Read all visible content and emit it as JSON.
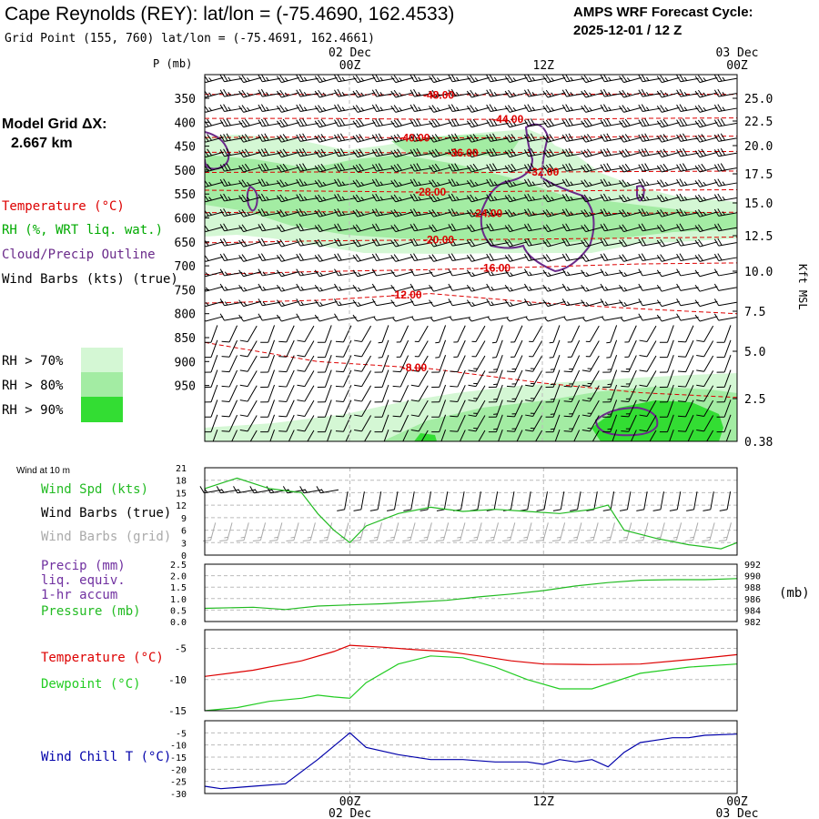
{
  "header": {
    "station_title": "Cape Reynolds (REY):  lat/lon = (-75.4690, 162.4533)",
    "grid_point": "Grid Point (155, 760) lat/lon = (-75.4691, 162.4661)",
    "cycle_line1": "AMPS WRF Forecast Cycle:",
    "cycle_line2": "2025-12-01 / 12  Z"
  },
  "left_labels": {
    "model_grid_line1": "Model Grid ΔX:",
    "model_grid_line2": "2.667 km",
    "temperature": "Temperature (°C)",
    "rh": "RH (%, WRT liq. wat.)",
    "cloud": "Cloud/Precip Outline",
    "wind_barbs": "Wind Barbs (kts) (true)",
    "rh70": "RH > 70%",
    "rh80": "RH > 80%",
    "rh90": "RH > 90%",
    "wind_10m": "Wind at 10 m",
    "wind_spd": "Wind Spd (kts)",
    "wind_barbs_true": "Wind Barbs (true)",
    "wind_barbs_grid": "Wind Barbs (grid)",
    "precip1": "Precip (mm)",
    "precip2": "liq. equiv.",
    "precip3": "1-hr accum",
    "pressure": "Pressure (mb)",
    "pressure_units": "(mb)",
    "temperature2": "Temperature (°C)",
    "dewpoint": "Dewpoint (°C)",
    "windchill": "Wind Chill T (°C)"
  },
  "colors": {
    "temperature": "#dd0000",
    "rh_label": "#00aa00",
    "cloud": "#6a2a8a",
    "wind_speed": "#22bb22",
    "wind_grid": "#aaaaaa",
    "precip_label": "#7030a0",
    "dewpoint": "#22cc22",
    "windchill": "#0000aa",
    "rh70": "#d4f7d4",
    "rh80": "#a3eca3",
    "rh90": "#33dd33"
  },
  "chart_data": [
    {
      "type": "time-height cross-section",
      "ylabel_left": "P (mb)",
      "ylabel_right": "Kft MSL",
      "pressure_ticks": [
        "350",
        "400",
        "450",
        "500",
        "550",
        "600",
        "650",
        "700",
        "750",
        "800",
        "850",
        "900",
        "950"
      ],
      "height_ticks": [
        "25.0",
        "22.5",
        "20.0",
        "17.5",
        "15.0",
        "12.5",
        "10.0",
        "7.5",
        "5.0",
        "2.5",
        "0.38"
      ],
      "time_top": [
        {
          "date": "02 Dec",
          "hour": "00Z"
        },
        {
          "date": "",
          "hour": "12Z"
        },
        {
          "date": "03 Dec",
          "hour": "00Z"
        }
      ],
      "isotherm_labels": [
        "-48.00",
        "-44.00",
        "-40.00",
        "-36.00",
        "-32.00",
        "-28.00",
        "-24.00",
        "-20.00",
        "-16.00",
        "-12.00",
        "-8.00"
      ],
      "isotherms": [
        {
          "label": "-48.00",
          "p": [
            342,
            342,
            343,
            342,
            341,
            342
          ]
        },
        {
          "label": "-44.00",
          "p": [
            392,
            392,
            394,
            394,
            392,
            391
          ]
        },
        {
          "label": "-40.00",
          "p": [
            432,
            431,
            433,
            432,
            430,
            429
          ]
        },
        {
          "label": "-36.00",
          "p": [
            463,
            463,
            464,
            463,
            462,
            461
          ]
        },
        {
          "label": "-32.00",
          "p": [
            505,
            504,
            506,
            504,
            503,
            502
          ]
        },
        {
          "label": "-28.00",
          "p": [
            542,
            544,
            546,
            544,
            542,
            541
          ]
        },
        {
          "label": "-24.00",
          "p": [
            589,
            587,
            589,
            592,
            590,
            588
          ]
        },
        {
          "label": "-20.00",
          "p": [
            652,
            648,
            646,
            644,
            642,
            640
          ]
        },
        {
          "label": "-16.00",
          "p": [
            718,
            712,
            708,
            702,
            696,
            694
          ]
        },
        {
          "label": "-12.00",
          "p": [
            778,
            772,
            758,
            778,
            790,
            800
          ]
        },
        {
          "label": "-8.00",
          "p": [
            860,
            900,
            915,
            945,
            965,
            975
          ]
        }
      ],
      "wind_speed_kts": [
        {
          "p": 350,
          "spd": [
            25,
            25,
            25,
            25,
            25,
            25
          ]
        },
        {
          "p": 450,
          "spd": [
            30,
            30,
            30,
            30,
            30,
            30
          ]
        },
        {
          "p": 550,
          "spd": [
            25,
            25,
            25,
            25,
            25,
            25
          ]
        },
        {
          "p": 650,
          "spd": [
            20,
            20,
            20,
            20,
            20,
            20
          ]
        },
        {
          "p": 750,
          "spd": [
            15,
            15,
            10,
            15,
            15,
            10
          ]
        },
        {
          "p": 850,
          "spd": [
            10,
            10,
            5,
            5,
            5,
            10
          ]
        },
        {
          "p": 950,
          "spd": [
            10,
            10,
            10,
            15,
            15,
            10
          ]
        }
      ]
    },
    {
      "type": "line",
      "title": "Wind at 10 m",
      "yticks": [
        0,
        3,
        6,
        9,
        12,
        15,
        18,
        21
      ],
      "ylim": [
        0,
        21
      ],
      "series": [
        {
          "name": "Wind Spd (kts)",
          "x": [
            -9,
            -7,
            -5,
            -3,
            -2,
            -1,
            0,
            1,
            3,
            5,
            7,
            9,
            11,
            13,
            15,
            16,
            17,
            19,
            21,
            23,
            24
          ],
          "values": [
            16,
            18.5,
            16,
            15,
            10,
            6,
            3,
            7,
            10,
            11.5,
            10.5,
            11,
            10.5,
            10,
            11,
            12,
            6,
            4,
            2.5,
            1.5,
            3
          ]
        }
      ]
    },
    {
      "type": "line",
      "yticks_left": [
        "0.0",
        "0.5",
        "1.0",
        "1.5",
        "2.0",
        "2.5"
      ],
      "yticks_right": [
        "982",
        "984",
        "986",
        "988",
        "990",
        "992"
      ],
      "ylim_left": [
        0,
        2.5
      ],
      "ylim_right": [
        982,
        992
      ],
      "series": [
        {
          "name": "Pressure (mb)",
          "x": [
            -9,
            -6,
            -4,
            -2,
            0,
            2,
            4,
            6,
            8,
            10,
            12,
            14,
            16,
            18,
            20,
            22,
            24
          ],
          "values": [
            984.3,
            984.5,
            984.1,
            984.7,
            984.9,
            985.1,
            985.4,
            985.7,
            986.3,
            986.8,
            987.4,
            988.2,
            988.8,
            989.2,
            989.3,
            989.3,
            989.5
          ]
        }
      ]
    },
    {
      "type": "line",
      "yticks": [
        -15,
        -10,
        -5
      ],
      "ylim": [
        -15,
        -2
      ],
      "series": [
        {
          "name": "Temperature (°C)",
          "x": [
            -9,
            -6,
            -3,
            -1,
            0,
            2,
            4,
            6,
            8,
            10,
            12,
            15,
            18,
            21,
            24
          ],
          "values": [
            -9.5,
            -8.5,
            -7,
            -5.5,
            -4.5,
            -4.8,
            -5.2,
            -5.5,
            -6.2,
            -7,
            -7.5,
            -7.6,
            -7.5,
            -6.8,
            -6
          ]
        },
        {
          "name": "Dewpoint (°C)",
          "x": [
            -9,
            -7,
            -5,
            -3,
            -2,
            -1,
            0,
            1,
            3,
            5,
            7,
            9,
            11,
            13,
            15,
            18,
            21,
            24
          ],
          "values": [
            -15,
            -14.5,
            -13.5,
            -13,
            -12.5,
            -12.8,
            -13,
            -10.5,
            -7.5,
            -6.2,
            -6.5,
            -8,
            -10,
            -11.5,
            -11.5,
            -9,
            -8,
            -7.5
          ]
        }
      ]
    },
    {
      "type": "line",
      "yticks": [
        -30,
        -25,
        -20,
        -15,
        -10,
        -5
      ],
      "ylim": [
        -30,
        0
      ],
      "x_bottom": [
        {
          "hour": "00Z",
          "date": "02 Dec"
        },
        {
          "hour": "12Z",
          "date": ""
        },
        {
          "hour": "00Z",
          "date": "03 Dec"
        }
      ],
      "series": [
        {
          "name": "Wind Chill T (°C)",
          "x": [
            -9,
            -8,
            -6,
            -4,
            -2,
            0,
            1,
            3,
            5,
            7,
            9,
            11,
            12,
            13,
            14,
            15,
            16,
            17,
            18,
            19,
            20,
            21,
            22,
            24
          ],
          "values": [
            -27,
            -28,
            -27,
            -26,
            -16,
            -5,
            -11,
            -14,
            -16,
            -16,
            -17,
            -17,
            -18,
            -16,
            -17,
            -16,
            -19,
            -13,
            -9,
            -8,
            -7,
            -7,
            -6,
            -5.5
          ]
        }
      ]
    }
  ]
}
